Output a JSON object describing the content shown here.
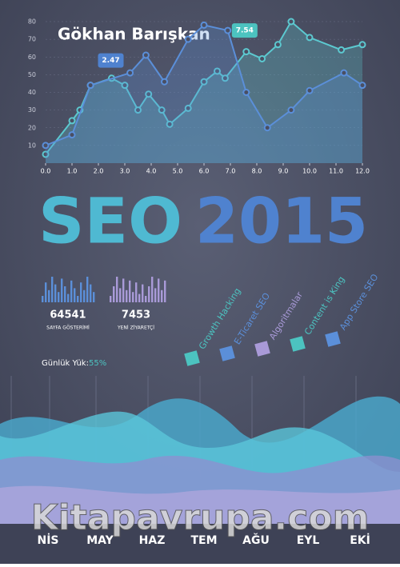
{
  "author": "Gökhan Barışkan",
  "title_seo": "SEO",
  "title_year": "2015",
  "chart_data": {
    "type": "line",
    "xlim": [
      0,
      12
    ],
    "ylim": [
      0,
      80
    ],
    "xticks": [
      {
        "value": 0,
        "label": "0.0"
      },
      {
        "value": 1,
        "label": "1.0"
      },
      {
        "value": 2,
        "label": "2.0"
      },
      {
        "value": 3,
        "label": "3.0"
      },
      {
        "value": 4,
        "label": "4.0"
      },
      {
        "value": 5,
        "label": "5.0"
      },
      {
        "value": 6,
        "label": "6.0"
      },
      {
        "value": 7,
        "label": "7.0"
      },
      {
        "value": 8,
        "label": "8.0"
      },
      {
        "value": 9,
        "label": "9.0"
      },
      {
        "value": 10,
        "label": "10.0"
      },
      {
        "value": 11,
        "label": "11.0"
      },
      {
        "value": 12,
        "label": "12.0"
      }
    ],
    "yticks": [
      10,
      20,
      30,
      40,
      50,
      60,
      70,
      80
    ],
    "annotations": [
      {
        "text": "2.47",
        "x": 2.47,
        "y": 58
      },
      {
        "text": "7.54",
        "x": 7.54,
        "y": 75
      }
    ],
    "series": [
      {
        "color": "#5cc9d0",
        "x": [
          0,
          1,
          1.3,
          1.7,
          2.5,
          3,
          3.5,
          3.9,
          4.4,
          4.7,
          5.4,
          6,
          6.5,
          6.8,
          7.6,
          8.2,
          8.8,
          9.3,
          10,
          11.2,
          12
        ],
        "values": [
          5,
          24,
          30,
          44,
          48,
          44,
          30,
          39,
          30,
          22,
          31,
          46,
          52,
          48,
          63,
          59,
          67,
          80,
          71,
          64,
          67
        ]
      },
      {
        "color": "#5b8fd9",
        "x": [
          0,
          1,
          1.7,
          3.2,
          3.8,
          4.5,
          5.4,
          6,
          6.9,
          7.6,
          8.4,
          9.3,
          10,
          11.3,
          12
        ],
        "values": [
          10,
          16,
          44,
          51,
          61,
          46,
          70,
          78,
          75,
          40,
          20,
          30,
          41,
          51,
          44
        ]
      }
    ]
  },
  "stats": [
    {
      "value": 64541,
      "label": "SAYFA GÖSTERİMİ"
    },
    {
      "value": 7453,
      "label": "YENİ ZİYARETÇİ"
    }
  ],
  "load": {
    "label": "Günlük Yük:",
    "value": "55%"
  },
  "topics": [
    {
      "name": "Growth Hacking",
      "color": "#4cc3c0"
    },
    {
      "name": "E-Ticaret SEO",
      "color": "#5b8fd9"
    },
    {
      "name": "Algoritmalar",
      "color": "#a99ad8"
    },
    {
      "name": "Content is King",
      "color": "#4cc3c0"
    },
    {
      "name": "App Store SEO",
      "color": "#5b8fd9"
    }
  ],
  "months": [
    "NİS",
    "MAY",
    "HAZ",
    "TEM",
    "AĞU",
    "EYL",
    "EKİ"
  ],
  "watermark": "Kitapavrupa.com"
}
